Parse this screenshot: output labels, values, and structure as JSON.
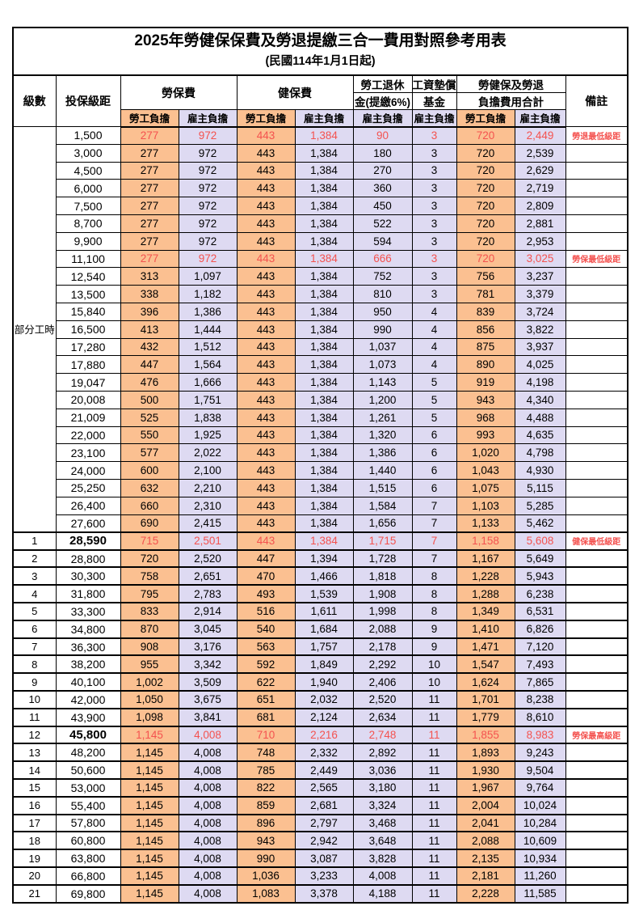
{
  "title": "2025年勞健保保費及勞退提繳三合一費用對照參考用表",
  "subtitle": "(民國114年1月1日起)",
  "colors": {
    "employee_bg": "#fbc091",
    "employer_bg": "#dedaf2",
    "highlight_text": "#f4524f",
    "border": "#000000"
  },
  "header": {
    "level": "級數",
    "bracket": "投保級距",
    "labor_insurance": "勞保費",
    "health_insurance": "健保費",
    "pension_line1": "勞工退休",
    "pension_line2": "金(提繳6%)",
    "wage_fund_line1": "工資墊償",
    "wage_fund_line2": "基金",
    "total_line1": "勞健保及勞退",
    "total_line2": "負擔費用合計",
    "note": "備註",
    "employee": "勞工負擔",
    "employer": "雇主負擔"
  },
  "part_time": {
    "label": "部分工時",
    "span": 23
  },
  "rows": [
    {
      "level": "",
      "bracket": "1,500",
      "v": [
        "277",
        "972",
        "443",
        "1,384",
        "90",
        "3",
        "720",
        "2,449"
      ],
      "note": "勞退最低級距",
      "red": true,
      "bold": false
    },
    {
      "level": "",
      "bracket": "3,000",
      "v": [
        "277",
        "972",
        "443",
        "1,384",
        "180",
        "3",
        "720",
        "2,539"
      ],
      "note": "",
      "red": false,
      "bold": false
    },
    {
      "level": "",
      "bracket": "4,500",
      "v": [
        "277",
        "972",
        "443",
        "1,384",
        "270",
        "3",
        "720",
        "2,629"
      ],
      "note": "",
      "red": false,
      "bold": false
    },
    {
      "level": "",
      "bracket": "6,000",
      "v": [
        "277",
        "972",
        "443",
        "1,384",
        "360",
        "3",
        "720",
        "2,719"
      ],
      "note": "",
      "red": false,
      "bold": false
    },
    {
      "level": "",
      "bracket": "7,500",
      "v": [
        "277",
        "972",
        "443",
        "1,384",
        "450",
        "3",
        "720",
        "2,809"
      ],
      "note": "",
      "red": false,
      "bold": false
    },
    {
      "level": "",
      "bracket": "8,700",
      "v": [
        "277",
        "972",
        "443",
        "1,384",
        "522",
        "3",
        "720",
        "2,881"
      ],
      "note": "",
      "red": false,
      "bold": false
    },
    {
      "level": "",
      "bracket": "9,900",
      "v": [
        "277",
        "972",
        "443",
        "1,384",
        "594",
        "3",
        "720",
        "2,953"
      ],
      "note": "",
      "red": false,
      "bold": false
    },
    {
      "level": "",
      "bracket": "11,100",
      "v": [
        "277",
        "972",
        "443",
        "1,384",
        "666",
        "3",
        "720",
        "3,025"
      ],
      "note": "勞保最低級距",
      "red": true,
      "bold": false
    },
    {
      "level": "",
      "bracket": "12,540",
      "v": [
        "313",
        "1,097",
        "443",
        "1,384",
        "752",
        "3",
        "756",
        "3,237"
      ],
      "note": "",
      "red": false,
      "bold": false
    },
    {
      "level": "",
      "bracket": "13,500",
      "v": [
        "338",
        "1,182",
        "443",
        "1,384",
        "810",
        "3",
        "781",
        "3,379"
      ],
      "note": "",
      "red": false,
      "bold": false
    },
    {
      "level": "",
      "bracket": "15,840",
      "v": [
        "396",
        "1,386",
        "443",
        "1,384",
        "950",
        "4",
        "839",
        "3,724"
      ],
      "note": "",
      "red": false,
      "bold": false
    },
    {
      "level": "",
      "bracket": "16,500",
      "v": [
        "413",
        "1,444",
        "443",
        "1,384",
        "990",
        "4",
        "856",
        "3,822"
      ],
      "note": "",
      "red": false,
      "bold": false
    },
    {
      "level": "",
      "bracket": "17,280",
      "v": [
        "432",
        "1,512",
        "443",
        "1,384",
        "1,037",
        "4",
        "875",
        "3,937"
      ],
      "note": "",
      "red": false,
      "bold": false
    },
    {
      "level": "",
      "bracket": "17,880",
      "v": [
        "447",
        "1,564",
        "443",
        "1,384",
        "1,073",
        "4",
        "890",
        "4,025"
      ],
      "note": "",
      "red": false,
      "bold": false
    },
    {
      "level": "",
      "bracket": "19,047",
      "v": [
        "476",
        "1,666",
        "443",
        "1,384",
        "1,143",
        "5",
        "919",
        "4,198"
      ],
      "note": "",
      "red": false,
      "bold": false
    },
    {
      "level": "",
      "bracket": "20,008",
      "v": [
        "500",
        "1,751",
        "443",
        "1,384",
        "1,200",
        "5",
        "943",
        "4,340"
      ],
      "note": "",
      "red": false,
      "bold": false
    },
    {
      "level": "",
      "bracket": "21,009",
      "v": [
        "525",
        "1,838",
        "443",
        "1,384",
        "1,261",
        "5",
        "968",
        "4,488"
      ],
      "note": "",
      "red": false,
      "bold": false
    },
    {
      "level": "",
      "bracket": "22,000",
      "v": [
        "550",
        "1,925",
        "443",
        "1,384",
        "1,320",
        "6",
        "993",
        "4,635"
      ],
      "note": "",
      "red": false,
      "bold": false
    },
    {
      "level": "",
      "bracket": "23,100",
      "v": [
        "577",
        "2,022",
        "443",
        "1,384",
        "1,386",
        "6",
        "1,020",
        "4,798"
      ],
      "note": "",
      "red": false,
      "bold": false
    },
    {
      "level": "",
      "bracket": "24,000",
      "v": [
        "600",
        "2,100",
        "443",
        "1,384",
        "1,440",
        "6",
        "1,043",
        "4,930"
      ],
      "note": "",
      "red": false,
      "bold": false
    },
    {
      "level": "",
      "bracket": "25,250",
      "v": [
        "632",
        "2,210",
        "443",
        "1,384",
        "1,515",
        "6",
        "1,075",
        "5,115"
      ],
      "note": "",
      "red": false,
      "bold": false
    },
    {
      "level": "",
      "bracket": "26,400",
      "v": [
        "660",
        "2,310",
        "443",
        "1,384",
        "1,584",
        "7",
        "1,103",
        "5,285"
      ],
      "note": "",
      "red": false,
      "bold": false
    },
    {
      "level": "",
      "bracket": "27,600",
      "v": [
        "690",
        "2,415",
        "443",
        "1,384",
        "1,656",
        "7",
        "1,133",
        "5,462"
      ],
      "note": "",
      "red": false,
      "bold": false
    },
    {
      "level": "1",
      "bracket": "28,590",
      "v": [
        "715",
        "2,501",
        "443",
        "1,384",
        "1,715",
        "7",
        "1,158",
        "5,608"
      ],
      "note": "健保最低級距",
      "red": true,
      "bold": true
    },
    {
      "level": "2",
      "bracket": "28,800",
      "v": [
        "720",
        "2,520",
        "447",
        "1,394",
        "1,728",
        "7",
        "1,167",
        "5,649"
      ],
      "note": "",
      "red": false,
      "bold": false
    },
    {
      "level": "3",
      "bracket": "30,300",
      "v": [
        "758",
        "2,651",
        "470",
        "1,466",
        "1,818",
        "8",
        "1,228",
        "5,943"
      ],
      "note": "",
      "red": false,
      "bold": false
    },
    {
      "level": "4",
      "bracket": "31,800",
      "v": [
        "795",
        "2,783",
        "493",
        "1,539",
        "1,908",
        "8",
        "1,288",
        "6,238"
      ],
      "note": "",
      "red": false,
      "bold": false
    },
    {
      "level": "5",
      "bracket": "33,300",
      "v": [
        "833",
        "2,914",
        "516",
        "1,611",
        "1,998",
        "8",
        "1,349",
        "6,531"
      ],
      "note": "",
      "red": false,
      "bold": false
    },
    {
      "level": "6",
      "bracket": "34,800",
      "v": [
        "870",
        "3,045",
        "540",
        "1,684",
        "2,088",
        "9",
        "1,410",
        "6,826"
      ],
      "note": "",
      "red": false,
      "bold": false
    },
    {
      "level": "7",
      "bracket": "36,300",
      "v": [
        "908",
        "3,176",
        "563",
        "1,757",
        "2,178",
        "9",
        "1,471",
        "7,120"
      ],
      "note": "",
      "red": false,
      "bold": false
    },
    {
      "level": "8",
      "bracket": "38,200",
      "v": [
        "955",
        "3,342",
        "592",
        "1,849",
        "2,292",
        "10",
        "1,547",
        "7,493"
      ],
      "note": "",
      "red": false,
      "bold": false
    },
    {
      "level": "9",
      "bracket": "40,100",
      "v": [
        "1,002",
        "3,509",
        "622",
        "1,940",
        "2,406",
        "10",
        "1,624",
        "7,865"
      ],
      "note": "",
      "red": false,
      "bold": false
    },
    {
      "level": "10",
      "bracket": "42,000",
      "v": [
        "1,050",
        "3,675",
        "651",
        "2,032",
        "2,520",
        "11",
        "1,701",
        "8,238"
      ],
      "note": "",
      "red": false,
      "bold": false
    },
    {
      "level": "11",
      "bracket": "43,900",
      "v": [
        "1,098",
        "3,841",
        "681",
        "2,124",
        "2,634",
        "11",
        "1,779",
        "8,610"
      ],
      "note": "",
      "red": false,
      "bold": false
    },
    {
      "level": "12",
      "bracket": "45,800",
      "v": [
        "1,145",
        "4,008",
        "710",
        "2,216",
        "2,748",
        "11",
        "1,855",
        "8,983"
      ],
      "note": "勞保最高級距",
      "red": true,
      "bold": true
    },
    {
      "level": "13",
      "bracket": "48,200",
      "v": [
        "1,145",
        "4,008",
        "748",
        "2,332",
        "2,892",
        "11",
        "1,893",
        "9,243"
      ],
      "note": "",
      "red": false,
      "bold": false
    },
    {
      "level": "14",
      "bracket": "50,600",
      "v": [
        "1,145",
        "4,008",
        "785",
        "2,449",
        "3,036",
        "11",
        "1,930",
        "9,504"
      ],
      "note": "",
      "red": false,
      "bold": false
    },
    {
      "level": "15",
      "bracket": "53,000",
      "v": [
        "1,145",
        "4,008",
        "822",
        "2,565",
        "3,180",
        "11",
        "1,967",
        "9,764"
      ],
      "note": "",
      "red": false,
      "bold": false
    },
    {
      "level": "16",
      "bracket": "55,400",
      "v": [
        "1,145",
        "4,008",
        "859",
        "2,681",
        "3,324",
        "11",
        "2,004",
        "10,024"
      ],
      "note": "",
      "red": false,
      "bold": false
    },
    {
      "level": "17",
      "bracket": "57,800",
      "v": [
        "1,145",
        "4,008",
        "896",
        "2,797",
        "3,468",
        "11",
        "2,041",
        "10,284"
      ],
      "note": "",
      "red": false,
      "bold": false
    },
    {
      "level": "18",
      "bracket": "60,800",
      "v": [
        "1,145",
        "4,008",
        "943",
        "2,942",
        "3,648",
        "11",
        "2,088",
        "10,609"
      ],
      "note": "",
      "red": false,
      "bold": false
    },
    {
      "level": "19",
      "bracket": "63,800",
      "v": [
        "1,145",
        "4,008",
        "990",
        "3,087",
        "3,828",
        "11",
        "2,135",
        "10,934"
      ],
      "note": "",
      "red": false,
      "bold": false
    },
    {
      "level": "20",
      "bracket": "66,800",
      "v": [
        "1,145",
        "4,008",
        "1,036",
        "3,233",
        "4,008",
        "11",
        "2,181",
        "11,260"
      ],
      "note": "",
      "red": false,
      "bold": false
    },
    {
      "level": "21",
      "bracket": "69,800",
      "v": [
        "1,145",
        "4,008",
        "1,083",
        "3,378",
        "4,188",
        "11",
        "2,228",
        "11,585"
      ],
      "note": "",
      "red": false,
      "bold": false
    }
  ]
}
